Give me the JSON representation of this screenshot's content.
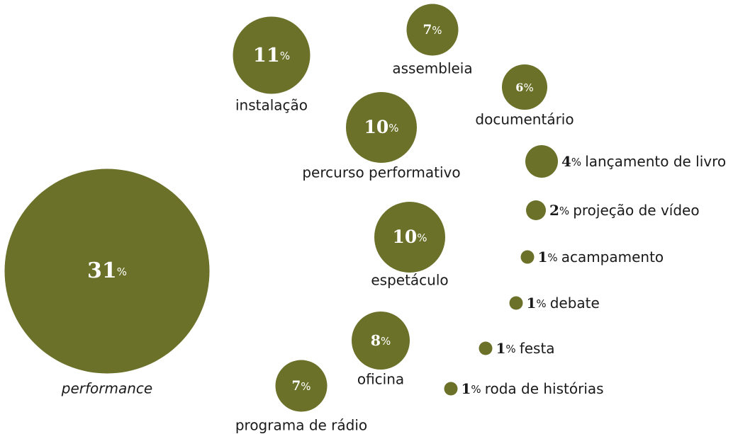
{
  "chart_data": {
    "type": "bubble",
    "unit": "%",
    "color": "#6b7128",
    "categories": [
      "performance",
      "instalação",
      "assembleia",
      "documentário",
      "percurso performativo",
      "lançamento de livro",
      "projeção de vídeo",
      "espetáculo",
      "acampamento",
      "debate",
      "oficina",
      "festa",
      "programa de rádio",
      "roda de histórias"
    ],
    "values": [
      31,
      11,
      7,
      6,
      10,
      4,
      2,
      10,
      1,
      1,
      8,
      1,
      7,
      1
    ]
  }
}
